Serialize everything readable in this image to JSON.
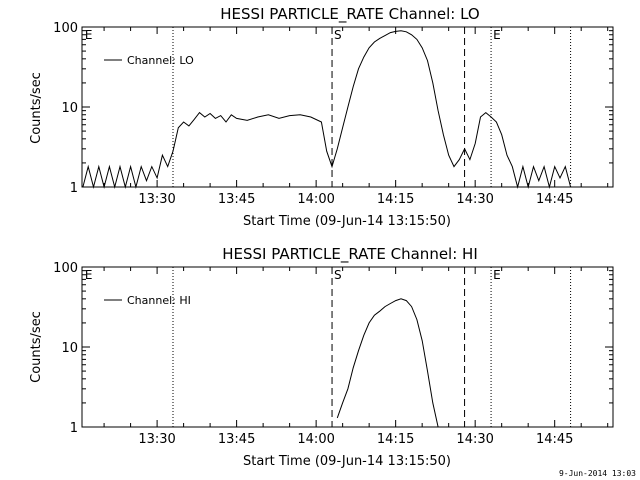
{
  "footer": "9-Jun-2014 13:03",
  "chart_data": [
    {
      "type": "line",
      "title": "HESSI PARTICLE_RATE Channel: LO",
      "xlabel": "Start Time (09-Jun-14 13:15:50)",
      "ylabel": "Counts/sec",
      "yscale": "log",
      "ylim": [
        1,
        100
      ],
      "xlim": [
        "13:15:50",
        "14:56:00"
      ],
      "x_tick_labels": [
        "13:30",
        "13:45",
        "14:00",
        "14:15",
        "14:30",
        "14:45"
      ],
      "y_tick_labels": [
        "1",
        "10",
        "100"
      ],
      "legend": {
        "position": "top-left",
        "entries": [
          "Channel: LO"
        ]
      },
      "markers": [
        {
          "label": "E",
          "time": "13:16",
          "style": "none"
        },
        {
          "label": "",
          "time": "13:33",
          "style": "dotted"
        },
        {
          "label": "S",
          "time": "14:03",
          "style": "dashed"
        },
        {
          "label": "",
          "time": "14:28",
          "style": "dashed"
        },
        {
          "label": "E",
          "time": "14:33",
          "style": "dotted"
        },
        {
          "label": "",
          "time": "14:48",
          "style": "dotted"
        }
      ],
      "series": [
        {
          "name": "Channel: LO",
          "points": [
            [
              "13:16",
              1
            ],
            [
              "13:17",
              1.8
            ],
            [
              "13:18",
              1
            ],
            [
              "13:19",
              1.8
            ],
            [
              "13:20",
              1
            ],
            [
              "13:21",
              1.8
            ],
            [
              "13:22",
              1
            ],
            [
              "13:23",
              1.8
            ],
            [
              "13:24",
              1
            ],
            [
              "13:25",
              1.8
            ],
            [
              "13:26",
              1
            ],
            [
              "13:27",
              1.8
            ],
            [
              "13:28",
              1.2
            ],
            [
              "13:29",
              1.8
            ],
            [
              "13:30",
              1.3
            ],
            [
              "13:31",
              2.5
            ],
            [
              "13:32",
              1.8
            ],
            [
              "13:33",
              2.8
            ],
            [
              "13:34",
              5.5
            ],
            [
              "13:35",
              6.5
            ],
            [
              "13:36",
              5.8
            ],
            [
              "13:37",
              7
            ],
            [
              "13:38",
              8.5
            ],
            [
              "13:39",
              7.5
            ],
            [
              "13:40",
              8.3
            ],
            [
              "13:41",
              7.2
            ],
            [
              "13:42",
              7.8
            ],
            [
              "13:43",
              6.5
            ],
            [
              "13:44",
              8
            ],
            [
              "13:45",
              7.2
            ],
            [
              "13:47",
              6.8
            ],
            [
              "13:49",
              7.5
            ],
            [
              "13:51",
              8
            ],
            [
              "13:53",
              7.2
            ],
            [
              "13:55",
              7.8
            ],
            [
              "13:57",
              8
            ],
            [
              "13:59",
              7.5
            ],
            [
              "14:01",
              6.5
            ],
            [
              "14:02",
              2.8
            ],
            [
              "14:03",
              1.8
            ],
            [
              "14:04",
              3
            ],
            [
              "14:05",
              5.5
            ],
            [
              "14:06",
              10
            ],
            [
              "14:07",
              18
            ],
            [
              "14:08",
              30
            ],
            [
              "14:09",
              42
            ],
            [
              "14:10",
              55
            ],
            [
              "14:11",
              65
            ],
            [
              "14:12",
              72
            ],
            [
              "14:13",
              78
            ],
            [
              "14:14",
              85
            ],
            [
              "14:15",
              88
            ],
            [
              "14:16",
              90
            ],
            [
              "14:17",
              87
            ],
            [
              "14:18",
              80
            ],
            [
              "14:19",
              70
            ],
            [
              "14:20",
              55
            ],
            [
              "14:21",
              38
            ],
            [
              "14:22",
              20
            ],
            [
              "14:23",
              9
            ],
            [
              "14:24",
              4.5
            ],
            [
              "14:25",
              2.5
            ],
            [
              "14:26",
              1.8
            ],
            [
              "14:27",
              2.2
            ],
            [
              "14:28",
              3
            ],
            [
              "14:29",
              2.2
            ],
            [
              "14:30",
              3.5
            ],
            [
              "14:31",
              7.5
            ],
            [
              "14:32",
              8.5
            ],
            [
              "14:33",
              7.5
            ],
            [
              "14:34",
              6.5
            ],
            [
              "14:35",
              4.5
            ],
            [
              "14:36",
              2.5
            ],
            [
              "14:37",
              1.8
            ],
            [
              "14:38",
              1
            ],
            [
              "14:39",
              1.8
            ],
            [
              "14:40",
              1
            ],
            [
              "14:41",
              1.8
            ],
            [
              "14:42",
              1.2
            ],
            [
              "14:43",
              1.8
            ],
            [
              "14:44",
              1
            ],
            [
              "14:45",
              1.8
            ],
            [
              "14:46",
              1.3
            ],
            [
              "14:47",
              1.8
            ],
            [
              "14:48",
              1
            ]
          ]
        }
      ]
    },
    {
      "type": "line",
      "title": "HESSI PARTICLE_RATE Channel: HI",
      "xlabel": "Start Time (09-Jun-14 13:15:50)",
      "ylabel": "Counts/sec",
      "yscale": "log",
      "ylim": [
        1,
        100
      ],
      "xlim": [
        "13:15:50",
        "14:56:00"
      ],
      "x_tick_labels": [
        "13:30",
        "13:45",
        "14:00",
        "14:15",
        "14:30",
        "14:45"
      ],
      "y_tick_labels": [
        "1",
        "10",
        "100"
      ],
      "legend": {
        "position": "top-left",
        "entries": [
          "Channel: HI"
        ]
      },
      "markers": [
        {
          "label": "E",
          "time": "13:16",
          "style": "none"
        },
        {
          "label": "",
          "time": "13:33",
          "style": "dotted"
        },
        {
          "label": "S",
          "time": "14:03",
          "style": "dashed"
        },
        {
          "label": "",
          "time": "14:28",
          "style": "dashed"
        },
        {
          "label": "E",
          "time": "14:33",
          "style": "dotted"
        },
        {
          "label": "",
          "time": "14:48",
          "style": "dotted"
        }
      ],
      "series": [
        {
          "name": "Channel: HI",
          "points": [
            [
              "14:04",
              1.3
            ],
            [
              "14:05",
              2
            ],
            [
              "14:06",
              3
            ],
            [
              "14:07",
              5.5
            ],
            [
              "14:08",
              9
            ],
            [
              "14:09",
              14
            ],
            [
              "14:10",
              20
            ],
            [
              "14:11",
              25
            ],
            [
              "14:12",
              28
            ],
            [
              "14:13",
              32
            ],
            [
              "14:14",
              35
            ],
            [
              "14:15",
              38
            ],
            [
              "14:16",
              40
            ],
            [
              "14:17",
              38
            ],
            [
              "14:18",
              32
            ],
            [
              "14:19",
              22
            ],
            [
              "14:20",
              12
            ],
            [
              "14:21",
              5
            ],
            [
              "14:22",
              2
            ],
            [
              "14:23",
              1
            ]
          ]
        }
      ]
    }
  ]
}
